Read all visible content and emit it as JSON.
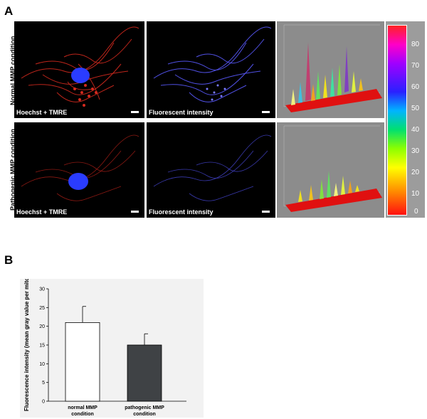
{
  "panels": {
    "a_label": "A",
    "b_label": "B"
  },
  "panel_a": {
    "row_labels": [
      "Normal MMP condition",
      "Pathogenic MMP condition"
    ],
    "captions": {
      "merge": "Hoechst + TMRE",
      "intensity": "Fluorescent intensity"
    },
    "colorbar": {
      "ticks": [
        "80",
        "70",
        "60",
        "50",
        "40",
        "30",
        "20",
        "10",
        "0"
      ],
      "range": [
        0,
        85
      ]
    },
    "colors": {
      "mitochondria": "#d42a1e",
      "nucleus": "#2a3cff",
      "intensity_map": "#5a5aff",
      "surface_base": "#e01010"
    }
  },
  "chart_data": {
    "type": "bar",
    "categories": [
      "normal MMP condition",
      "pathogenic MMP condition"
    ],
    "values": [
      21,
      15
    ],
    "errors": [
      4.3,
      3.0
    ],
    "ylabel": "Fluorescence intensity (mean gray value per mitochondrion)",
    "xlabel": "",
    "title": "",
    "ylim": [
      0,
      30
    ],
    "yticks": [
      0,
      5,
      10,
      15,
      20,
      25,
      30
    ],
    "bar_colors": [
      "#ffffff",
      "#3f4245"
    ]
  }
}
